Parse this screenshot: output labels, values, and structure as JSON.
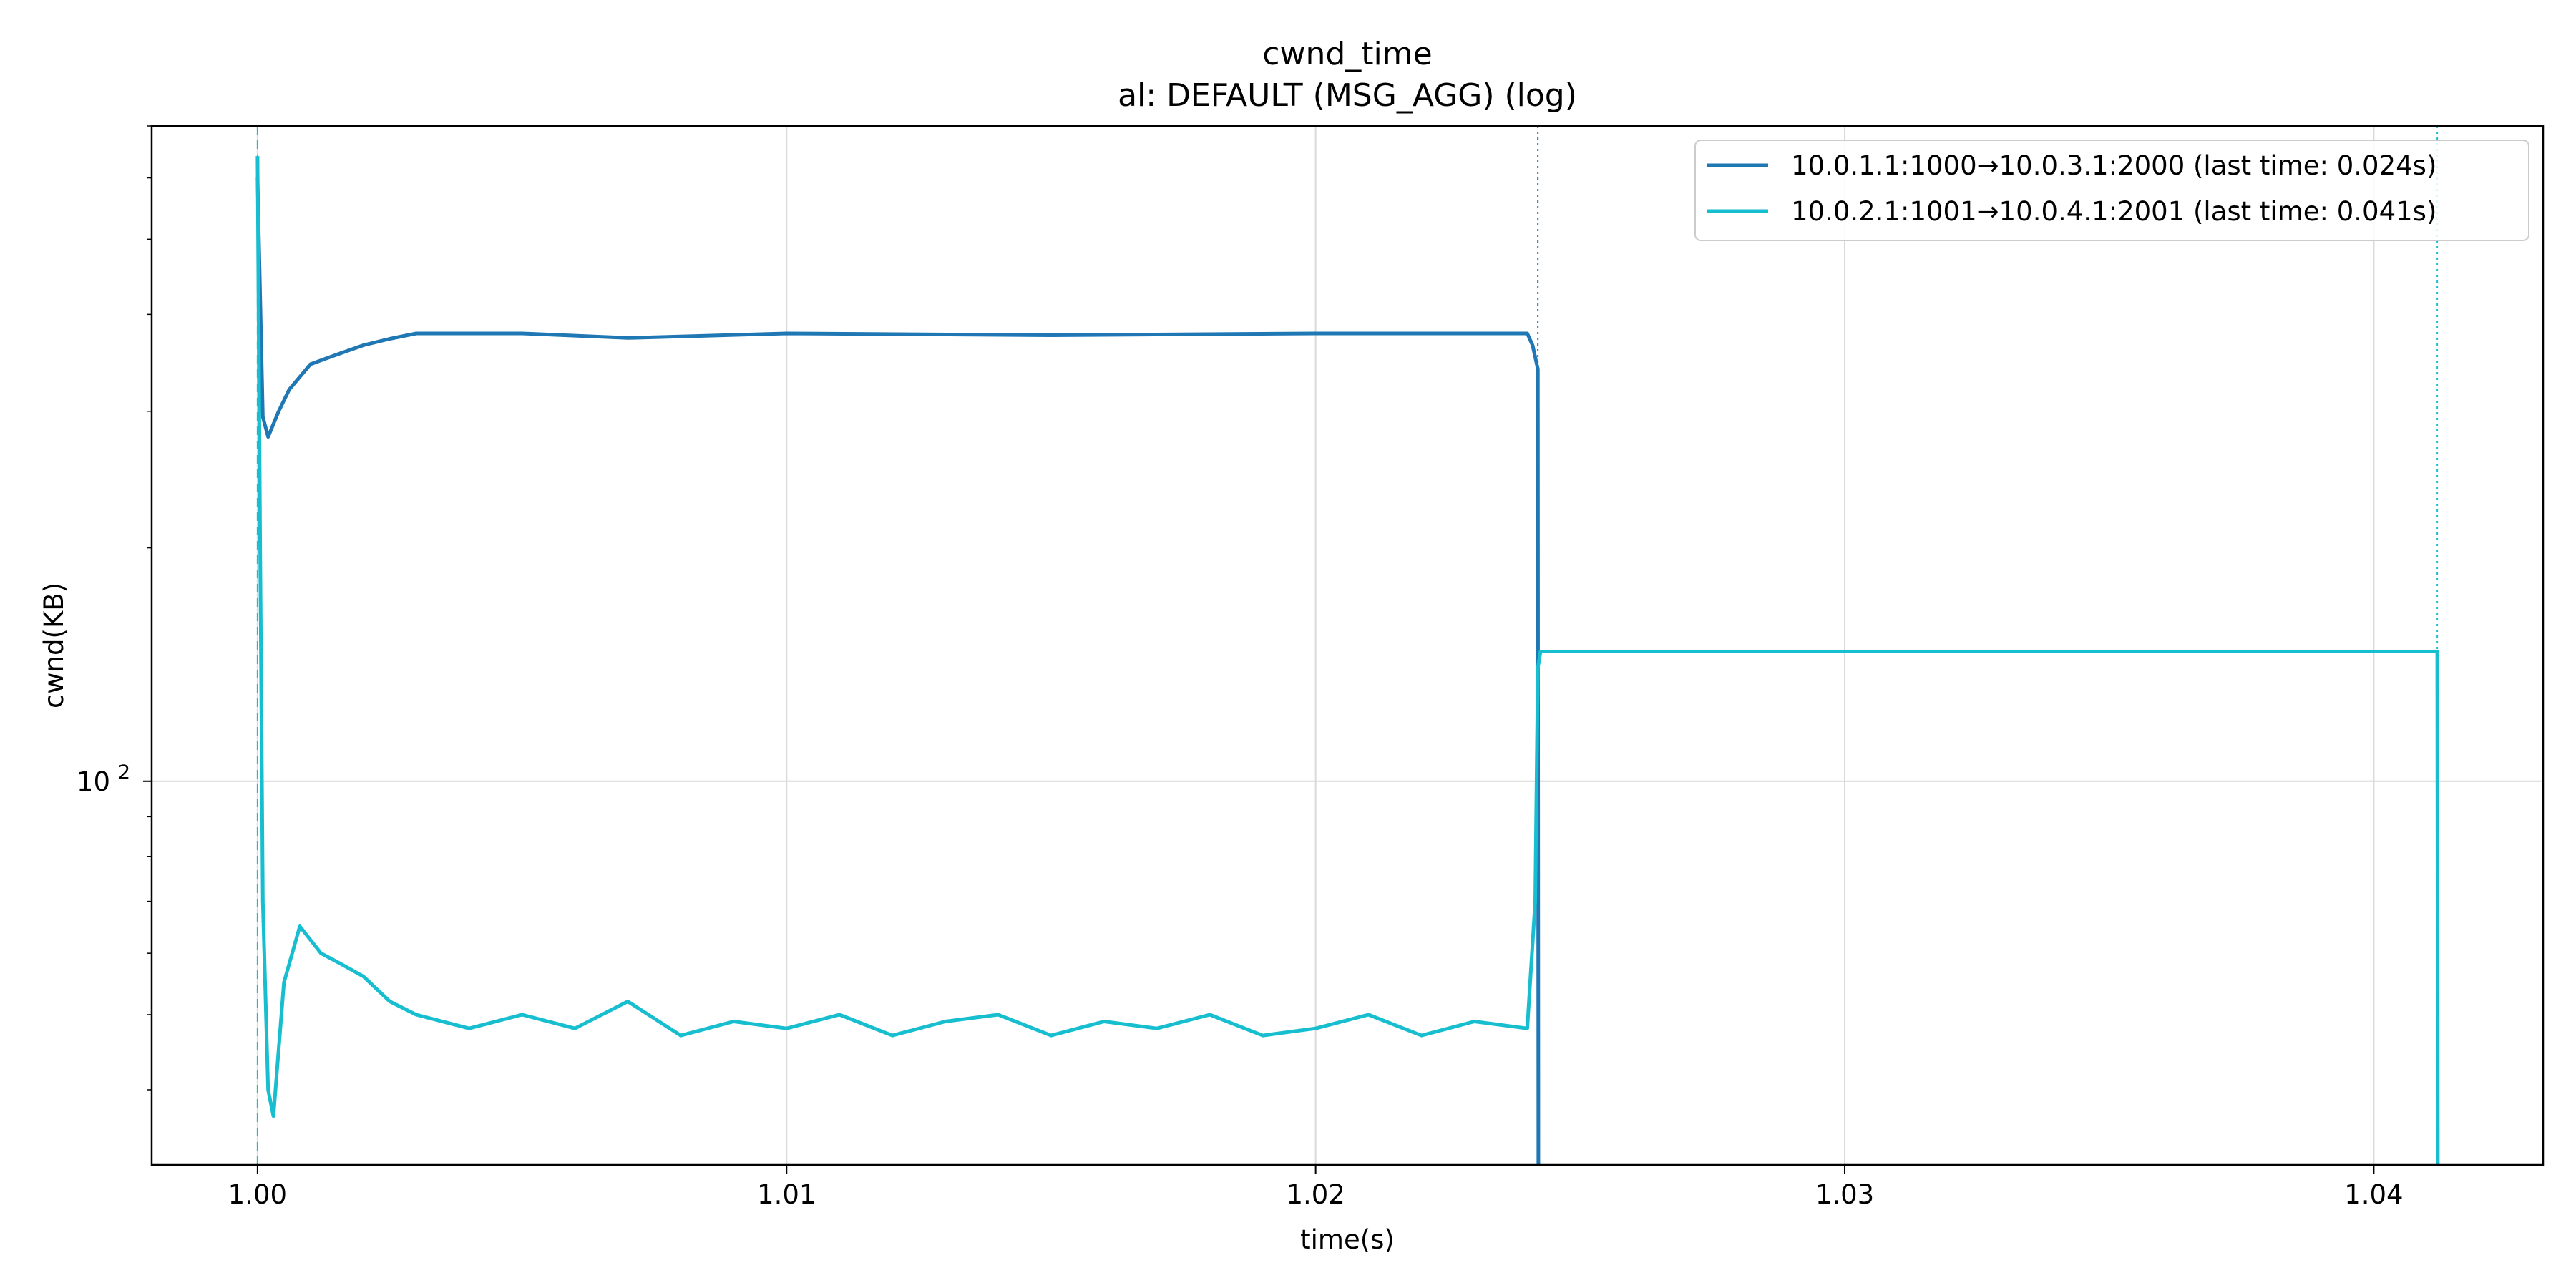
{
  "chart_data": {
    "type": "line",
    "title": "cwnd_time",
    "subtitle": "al: DEFAULT (MSG_AGG) (log)",
    "xlabel": "time(s)",
    "ylabel": "cwnd(KB)",
    "xlim": [
      0.998,
      1.0432
    ],
    "ylim": [
      32,
      700
    ],
    "yscale": "log",
    "grid": true,
    "legend_position": "top-right",
    "x_ticks": [
      1.0,
      1.01,
      1.02,
      1.03,
      1.04
    ],
    "x_tick_labels": [
      "1.00",
      "1.01",
      "1.02",
      "1.03",
      "1.04"
    ],
    "y_ticks": [
      100
    ],
    "y_tick_labels": [
      {
        "base": "10",
        "exp": "2"
      }
    ],
    "series": [
      {
        "name": "10.0.1.1:1000→10.0.3.1:2000 (last time: 0.024s)",
        "color": "#1f77b4",
        "marker_line_x": 1.0242,
        "marker_line_style": "dotted",
        "x": [
          1.0,
          1.0001,
          1.0002,
          1.0004,
          1.0006,
          1.001,
          1.0015,
          1.002,
          1.0025,
          1.003,
          1.005,
          1.007,
          1.01,
          1.015,
          1.02,
          1.024,
          1.0241,
          1.0242,
          1.02421
        ],
        "y": [
          600,
          295,
          278,
          300,
          320,
          345,
          355,
          365,
          372,
          378,
          378,
          373,
          378,
          376,
          378,
          378,
          365,
          340,
          32
        ]
      },
      {
        "name": "10.0.2.1:1001→10.0.4.1:2001 (last time: 0.041s)",
        "color": "#17becf",
        "marker_line_x": 1.0412,
        "marker_line_style": "dotted",
        "start_line_x": 1.0,
        "x": [
          1.0,
          1.00005,
          1.0001,
          1.0002,
          1.0003,
          1.0005,
          1.0008,
          1.0012,
          1.0016,
          1.002,
          1.0025,
          1.003,
          1.004,
          1.005,
          1.006,
          1.007,
          1.008,
          1.009,
          1.01,
          1.011,
          1.012,
          1.013,
          1.014,
          1.015,
          1.016,
          1.017,
          1.018,
          1.019,
          1.02,
          1.021,
          1.022,
          1.023,
          1.024,
          1.02415,
          1.0242,
          1.02425,
          1.025,
          1.03,
          1.035,
          1.04,
          1.0412,
          1.04121
        ],
        "y": [
          640,
          200,
          70,
          40,
          37,
          55,
          65,
          60,
          58,
          56,
          52,
          50,
          48,
          50,
          48,
          52,
          47,
          49,
          48,
          50,
          47,
          49,
          50,
          47,
          49,
          48,
          50,
          47,
          48,
          50,
          47,
          49,
          48,
          70,
          140,
          147,
          147,
          147,
          147,
          147,
          147,
          32
        ]
      }
    ]
  }
}
